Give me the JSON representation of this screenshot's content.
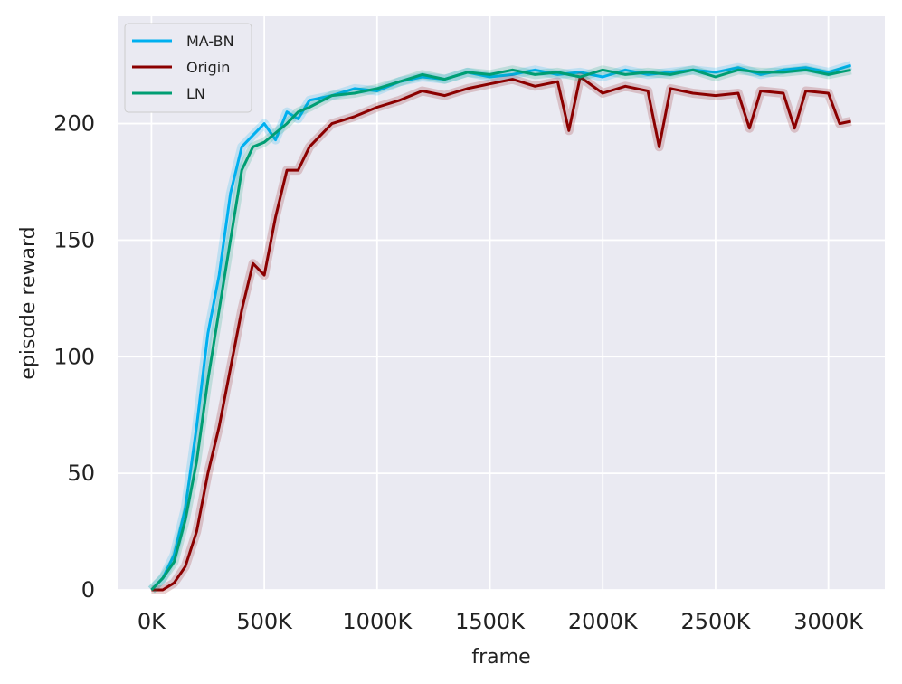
{
  "chart_data": {
    "type": "line",
    "title": "",
    "xlabel": "frame",
    "ylabel": "episode reward",
    "xlim": [
      -150000,
      3250000
    ],
    "ylim": [
      0,
      246
    ],
    "grid": true,
    "background": "#eaeaf2",
    "legend_position": "top-left",
    "x_ticks": [
      0,
      500000,
      1000000,
      1500000,
      2000000,
      2500000,
      3000000
    ],
    "x_tick_labels": [
      "0K",
      "500K",
      "1000K",
      "1500K",
      "2000K",
      "2500K",
      "3000K"
    ],
    "y_ticks": [
      0,
      50,
      100,
      150,
      200
    ],
    "y_tick_labels": [
      "0",
      "50",
      "100",
      "150",
      "200"
    ],
    "series": [
      {
        "name": "MA-BN",
        "color": "#00b0f0",
        "x": [
          0,
          50000,
          100000,
          150000,
          200000,
          250000,
          300000,
          350000,
          400000,
          450000,
          500000,
          550000,
          600000,
          650000,
          700000,
          800000,
          900000,
          1000000,
          1100000,
          1200000,
          1300000,
          1400000,
          1500000,
          1600000,
          1700000,
          1800000,
          1900000,
          2000000,
          2100000,
          2200000,
          2300000,
          2400000,
          2500000,
          2600000,
          2700000,
          2800000,
          2900000,
          3000000,
          3100000
        ],
        "y": [
          0,
          5,
          15,
          35,
          70,
          110,
          135,
          170,
          190,
          195,
          200,
          193,
          205,
          202,
          210,
          212,
          215,
          214,
          218,
          220,
          219,
          222,
          220,
          221,
          223,
          221,
          222,
          220,
          223,
          221,
          222,
          223,
          222,
          224,
          221,
          223,
          224,
          222,
          225
        ]
      },
      {
        "name": "Origin",
        "color": "#8b0000",
        "x": [
          0,
          50000,
          100000,
          150000,
          200000,
          250000,
          300000,
          350000,
          400000,
          450000,
          500000,
          550000,
          600000,
          650000,
          700000,
          800000,
          900000,
          1000000,
          1100000,
          1200000,
          1300000,
          1400000,
          1500000,
          1600000,
          1700000,
          1800000,
          1850000,
          1900000,
          2000000,
          2100000,
          2200000,
          2250000,
          2300000,
          2400000,
          2500000,
          2600000,
          2650000,
          2700000,
          2800000,
          2850000,
          2900000,
          3000000,
          3050000,
          3100000
        ],
        "y": [
          0,
          0,
          3,
          10,
          25,
          50,
          70,
          95,
          120,
          140,
          135,
          160,
          180,
          180,
          190,
          200,
          203,
          207,
          210,
          214,
          212,
          215,
          217,
          219,
          216,
          218,
          197,
          220,
          213,
          216,
          214,
          190,
          215,
          213,
          212,
          213,
          198,
          214,
          213,
          198,
          214,
          213,
          200,
          201
        ]
      },
      {
        "name": "LN",
        "color": "#009e73",
        "x": [
          0,
          50000,
          100000,
          150000,
          200000,
          250000,
          300000,
          350000,
          400000,
          450000,
          500000,
          550000,
          600000,
          650000,
          700000,
          800000,
          900000,
          1000000,
          1100000,
          1200000,
          1300000,
          1400000,
          1500000,
          1600000,
          1700000,
          1800000,
          1900000,
          2000000,
          2100000,
          2200000,
          2300000,
          2400000,
          2500000,
          2600000,
          2700000,
          2800000,
          2900000,
          3000000,
          3100000
        ],
        "y": [
          0,
          5,
          12,
          30,
          55,
          90,
          120,
          150,
          180,
          190,
          192,
          196,
          200,
          205,
          207,
          212,
          213,
          215,
          218,
          221,
          219,
          222,
          221,
          223,
          221,
          222,
          220,
          223,
          221,
          222,
          221,
          223,
          220,
          223,
          222,
          222,
          223,
          221,
          223
        ]
      }
    ]
  }
}
